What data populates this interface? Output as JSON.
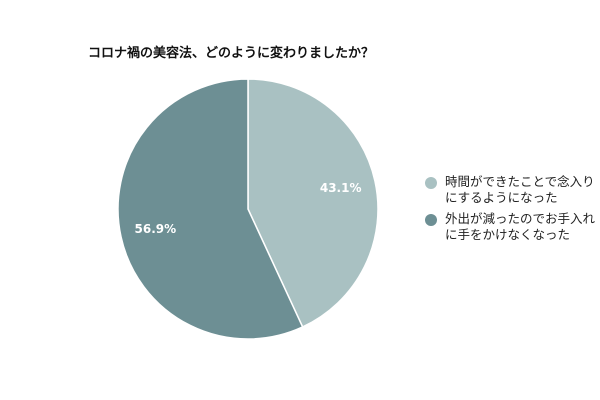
{
  "chart_data": {
    "type": "pie",
    "title": "コロナ禍の美容法、どのように変わりましたか？",
    "slices": [
      {
        "label": "時間ができたことで念入りにするようになった",
        "value": 43.1,
        "value_label": "43.1%",
        "color": "#a9c1c2"
      },
      {
        "label": "外出が減ったのでお手入れに手をかけなくなった",
        "value": 56.9,
        "value_label": "56.9%",
        "color": "#6d8f94"
      }
    ],
    "start_angle": "12 o'clock",
    "direction": "clockwise",
    "legend_position": "right",
    "data_label_color": "#ffffff"
  }
}
